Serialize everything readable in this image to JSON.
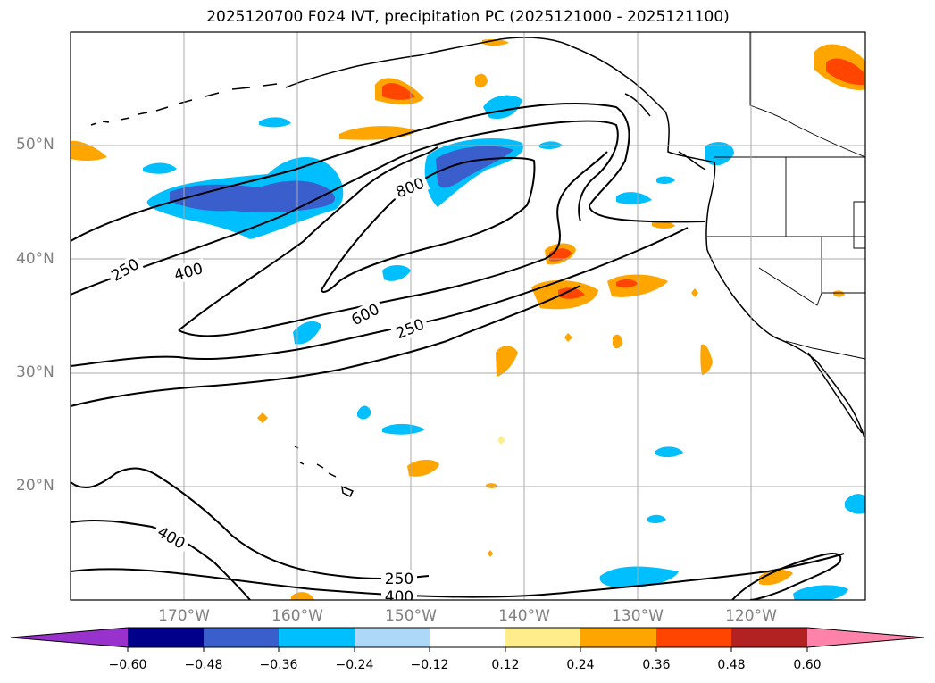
{
  "title": "2025120700 F024 IVT, precipitation PC (2025121000 - 2025121100)",
  "latitude_labels": [
    "50°N",
    "40°N",
    "30°N",
    "20°N"
  ],
  "longitude_labels": [
    "170°W",
    "160°W",
    "150°W",
    "140°W",
    "130°W",
    "120°W"
  ],
  "contour_labels": [
    "250",
    "400",
    "800",
    "600",
    "250",
    "400",
    "250",
    "400"
  ],
  "colorbar": {
    "ticks": [
      "−0.60",
      "−0.48",
      "−0.36",
      "−0.24",
      "−0.12",
      "0.12",
      "0.24",
      "0.36",
      "0.48",
      "0.60"
    ],
    "colors": [
      "#9932cc",
      "#00008b",
      "#3a5fcd",
      "#00bfff",
      "#add8f7",
      "#ffffff",
      "#ffec8b",
      "#ffa500",
      "#ff4500",
      "#b22222",
      "#ff82ab"
    ]
  },
  "chart_data": {
    "type": "map",
    "title": "2025120700 F024 IVT, precipitation PC (2025121000 - 2025121100)",
    "region": {
      "lon_range": [
        -180,
        -110
      ],
      "lat_range": [
        10,
        60
      ]
    },
    "field_contours": {
      "variable": "IVT",
      "levels": [
        250,
        400,
        600,
        800
      ]
    },
    "filled_field": {
      "variable": "precipitation PC",
      "levels": [
        -0.6,
        -0.48,
        -0.36,
        -0.24,
        -0.12,
        0.12,
        0.24,
        0.36,
        0.48,
        0.6
      ]
    }
  }
}
